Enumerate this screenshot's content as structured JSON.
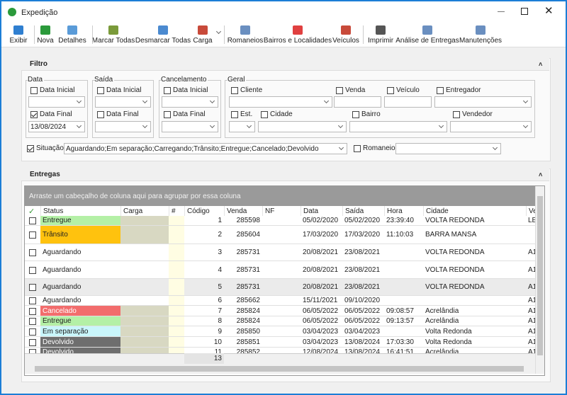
{
  "window": {
    "title": "Expedição"
  },
  "toolbar": [
    "Exibir",
    "Nova",
    "Detalhes",
    "Marcar Todas",
    "Desmarcar Todas",
    "Carga",
    "Romaneios",
    "Bairros e Localidades",
    "Veículos",
    "Imprimir",
    "Análise de Entregas",
    "Manutenções"
  ],
  "filter": {
    "title": "Filtro",
    "data": {
      "title": "Data",
      "start": "Data Inicial",
      "end": "Data Final",
      "end_value": "13/08/2024"
    },
    "saida": {
      "title": "Saída",
      "start": "Data Inicial",
      "end": "Data Final"
    },
    "cancelamento": {
      "title": "Cancelamento",
      "start": "Data Inicial",
      "end": "Data Final"
    },
    "geral": {
      "title": "Geral",
      "fields": [
        "Cliente",
        "Venda",
        "Veículo",
        "Entregador",
        "Est.",
        "Cidade",
        "Bairro",
        "Vendedor"
      ]
    },
    "situacao": {
      "label": "Situação:",
      "value": "Aguardando;Em separação;Carregando;Trânsito;Entregue;Cancelado;Devolvido"
    },
    "romaneio": {
      "label": "Romaneio:"
    }
  },
  "entregas": {
    "title": "Entregas",
    "group_hint": "Arraste um cabeçalho de coluna aqui para agrupar por essa coluna",
    "columns": [
      "Status",
      "Carga",
      "#",
      "Código",
      "Venda",
      "NF",
      "Data",
      "Saída",
      "Hora",
      "Cidade",
      "Ve"
    ],
    "rows": [
      {
        "cells": [
          "Entregue",
          null,
          null,
          1,
          285598,
          null,
          "05/02/2020",
          "05/02/2020",
          "23:39:40",
          "VOLTA REDONDA",
          "LE"
        ],
        "status_color": "#b4f0a6"
      },
      {
        "cells": [
          "Trânsito",
          null,
          null,
          2,
          285604,
          null,
          "17/03/2020",
          "17/03/2020",
          "11:10:03",
          "BARRA MANSA",
          null
        ],
        "status_color": "#ffc20e"
      },
      {
        "cells": [
          "Aguardando",
          null,
          null,
          3,
          285731,
          null,
          "20/08/2021",
          "23/08/2021",
          null,
          "VOLTA REDONDA",
          "A1"
        ]
      },
      {
        "cells": [
          "Aguardando",
          null,
          null,
          4,
          285731,
          null,
          "20/08/2021",
          "23/08/2021",
          null,
          "VOLTA REDONDA",
          "A1"
        ]
      },
      {
        "cells": [
          "Aguardando",
          null,
          null,
          5,
          285731,
          null,
          "20/08/2021",
          "23/08/2021",
          null,
          "VOLTA REDONDA",
          "A1"
        ]
      },
      {
        "cells": [
          "Aguardando",
          null,
          null,
          6,
          285662,
          null,
          "15/11/2021",
          "09/10/2020",
          null,
          null,
          "A1"
        ]
      },
      {
        "cells": [
          "Cancelado",
          null,
          null,
          7,
          285824,
          null,
          "06/05/2022",
          "06/05/2022",
          "09:08:57",
          "Acrelândia",
          "A1"
        ],
        "status_color": "#f26c6c"
      },
      {
        "cells": [
          "Entregue",
          null,
          null,
          8,
          285824,
          null,
          "06/05/2022",
          "06/05/2022",
          "09:13:57",
          "Acrelândia",
          "A1"
        ],
        "status_color": "#b4f0a6"
      },
      {
        "cells": [
          "Em separação",
          null,
          null,
          9,
          285850,
          null,
          "03/04/2023",
          "03/04/2023",
          null,
          "Volta Redonda",
          "A1"
        ],
        "status_color": "#c9f6fb"
      },
      {
        "cells": [
          "Devolvido",
          null,
          null,
          10,
          285851,
          null,
          "03/04/2023",
          "13/08/2024",
          "17:03:30",
          "Volta Redonda",
          "A1"
        ],
        "status_color": "#6e6e6e"
      },
      {
        "cells": [
          "Devolvido",
          null,
          null,
          11,
          285852,
          null,
          "12/08/2024",
          "13/08/2024",
          "16:41:51",
          "Acrelândia",
          "A1"
        ],
        "status_color": "#6e6e6e"
      }
    ],
    "footer_count": 13
  }
}
